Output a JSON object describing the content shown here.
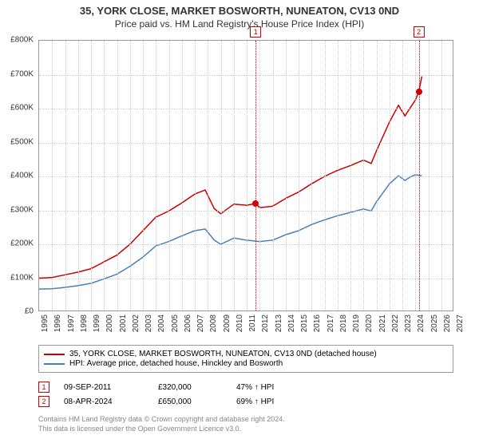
{
  "title": {
    "main": "35, YORK CLOSE, MARKET BOSWORTH, NUNEATON, CV13 0ND",
    "sub": "Price paid vs. HM Land Registry's House Price Index (HPI)"
  },
  "chart": {
    "type": "line",
    "background_color": "#ffffff",
    "grid_color": "#cccccc",
    "border_color": "#999999",
    "x": {
      "min": 1995,
      "max": 2027,
      "tick_step": 1,
      "labels": [
        "1995",
        "1996",
        "1997",
        "1998",
        "1999",
        "2000",
        "2001",
        "2002",
        "2003",
        "2004",
        "2005",
        "2006",
        "2007",
        "2008",
        "2009",
        "2010",
        "2011",
        "2012",
        "2013",
        "2014",
        "2015",
        "2016",
        "2017",
        "2018",
        "2019",
        "2020",
        "2021",
        "2022",
        "2023",
        "2024",
        "2025",
        "2026",
        "2027"
      ],
      "label_fontsize": 10,
      "rotation": -90
    },
    "y": {
      "min": 0,
      "max": 800000,
      "tick_step": 100000,
      "labels": [
        "£0",
        "£100K",
        "£200K",
        "£300K",
        "£400K",
        "£500K",
        "£600K",
        "£700K",
        "£800K"
      ],
      "label_fontsize": 10
    },
    "series": [
      {
        "name": "35, YORK CLOSE, MARKET BOSWORTH, NUNEATON, CV13 0ND (detached house)",
        "color": "#cc0000",
        "width": 1.5,
        "points": [
          [
            1995,
            100000
          ],
          [
            1996,
            102000
          ],
          [
            1997,
            110000
          ],
          [
            1998,
            118000
          ],
          [
            1999,
            128000
          ],
          [
            2000,
            148000
          ],
          [
            2001,
            168000
          ],
          [
            2002,
            200000
          ],
          [
            2003,
            240000
          ],
          [
            2004,
            280000
          ],
          [
            2005,
            298000
          ],
          [
            2006,
            322000
          ],
          [
            2007,
            348000
          ],
          [
            2007.8,
            360000
          ],
          [
            2008.5,
            305000
          ],
          [
            2009,
            290000
          ],
          [
            2010,
            318000
          ],
          [
            2011,
            315000
          ],
          [
            2011.7,
            320000
          ],
          [
            2012,
            308000
          ],
          [
            2013,
            312000
          ],
          [
            2014,
            335000
          ],
          [
            2015,
            354000
          ],
          [
            2016,
            378000
          ],
          [
            2017,
            400000
          ],
          [
            2018,
            418000
          ],
          [
            2019,
            432000
          ],
          [
            2020,
            448000
          ],
          [
            2020.6,
            438000
          ],
          [
            2021,
            475000
          ],
          [
            2022,
            560000
          ],
          [
            2022.7,
            610000
          ],
          [
            2023.2,
            578000
          ],
          [
            2023.6,
            602000
          ],
          [
            2024,
            625000
          ],
          [
            2024.27,
            650000
          ],
          [
            2024.5,
            695000
          ]
        ]
      },
      {
        "name": "HPI: Average price, detached house, Hinckley and Bosworth",
        "color": "#4a7ebb",
        "width": 1.5,
        "points": [
          [
            1995,
            68000
          ],
          [
            1996,
            69000
          ],
          [
            1997,
            73000
          ],
          [
            1998,
            78000
          ],
          [
            1999,
            85000
          ],
          [
            2000,
            98000
          ],
          [
            2001,
            112000
          ],
          [
            2002,
            135000
          ],
          [
            2003,
            162000
          ],
          [
            2004,
            195000
          ],
          [
            2005,
            208000
          ],
          [
            2006,
            225000
          ],
          [
            2007,
            240000
          ],
          [
            2007.8,
            245000
          ],
          [
            2008.5,
            212000
          ],
          [
            2009,
            200000
          ],
          [
            2010,
            218000
          ],
          [
            2011,
            212000
          ],
          [
            2012,
            208000
          ],
          [
            2013,
            212000
          ],
          [
            2014,
            228000
          ],
          [
            2015,
            240000
          ],
          [
            2016,
            258000
          ],
          [
            2017,
            272000
          ],
          [
            2018,
            284000
          ],
          [
            2019,
            294000
          ],
          [
            2020,
            304000
          ],
          [
            2020.6,
            298000
          ],
          [
            2021,
            325000
          ],
          [
            2022,
            378000
          ],
          [
            2022.7,
            402000
          ],
          [
            2023.2,
            388000
          ],
          [
            2023.6,
            398000
          ],
          [
            2024,
            405000
          ],
          [
            2024.5,
            402000
          ]
        ]
      }
    ],
    "sale_markers": [
      {
        "n": "1",
        "x": 2011.69,
        "y": 320000,
        "color": "#cc0000"
      },
      {
        "n": "2",
        "x": 2024.27,
        "y": 650000,
        "color": "#cc0000"
      }
    ]
  },
  "legend": {
    "items": [
      {
        "color": "#cc0000",
        "label": "35, YORK CLOSE, MARKET BOSWORTH, NUNEATON, CV13 0ND (detached house)"
      },
      {
        "color": "#4a7ebb",
        "label": "HPI: Average price, detached house, Hinckley and Bosworth"
      }
    ]
  },
  "sales": [
    {
      "n": "1",
      "color": "#cc0000",
      "date": "09-SEP-2011",
      "price": "£320,000",
      "pct": "47% ↑ HPI"
    },
    {
      "n": "2",
      "color": "#cc0000",
      "date": "08-APR-2024",
      "price": "£650,000",
      "pct": "69% ↑ HPI"
    }
  ],
  "footer": {
    "line1": "Contains HM Land Registry data © Crown copyright and database right 2024.",
    "line2": "This data is licensed under the Open Government Licence v3.0."
  }
}
